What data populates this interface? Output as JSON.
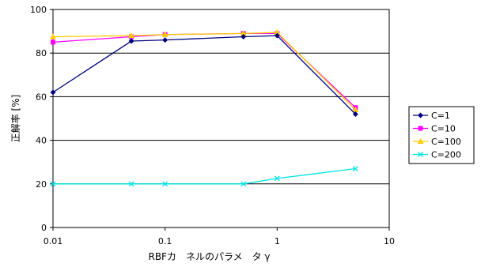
{
  "chart_data": {
    "type": "line",
    "x_scale": "log",
    "x": [
      0.01,
      0.05,
      0.1,
      0.5,
      1,
      5
    ],
    "xlim": [
      0.01,
      10
    ],
    "x_ticks": [
      0.01,
      0.1,
      1,
      10
    ],
    "x_tick_labels": [
      "0.01",
      "0.1",
      "1",
      "10"
    ],
    "ylim": [
      0,
      100
    ],
    "y_ticks": [
      0,
      20,
      40,
      60,
      80,
      100
    ],
    "y_tick_labels": [
      "0",
      "20",
      "40",
      "60",
      "80",
      "100"
    ],
    "xlabel": "RBFカ　ネルのパラメ　タ γ",
    "ylabel": "正解率 [%]",
    "grid": "horizontal",
    "legend_position": "right",
    "series": [
      {
        "name": "C=1",
        "values": [
          62,
          85.5,
          86,
          87.5,
          88,
          52
        ],
        "color": "#000080",
        "marker": "diamond"
      },
      {
        "name": "C=10",
        "values": [
          85,
          87.5,
          88.5,
          89,
          89,
          55
        ],
        "color": "#ff00ff",
        "marker": "square"
      },
      {
        "name": "C=100",
        "values": [
          87.5,
          88,
          88.5,
          89,
          89.5,
          54
        ],
        "color": "#ffcc00",
        "marker": "triangle"
      },
      {
        "name": "C=200",
        "values": [
          20,
          20,
          20,
          20,
          22.5,
          27
        ],
        "color": "#00e5e5",
        "marker": "x"
      }
    ]
  }
}
